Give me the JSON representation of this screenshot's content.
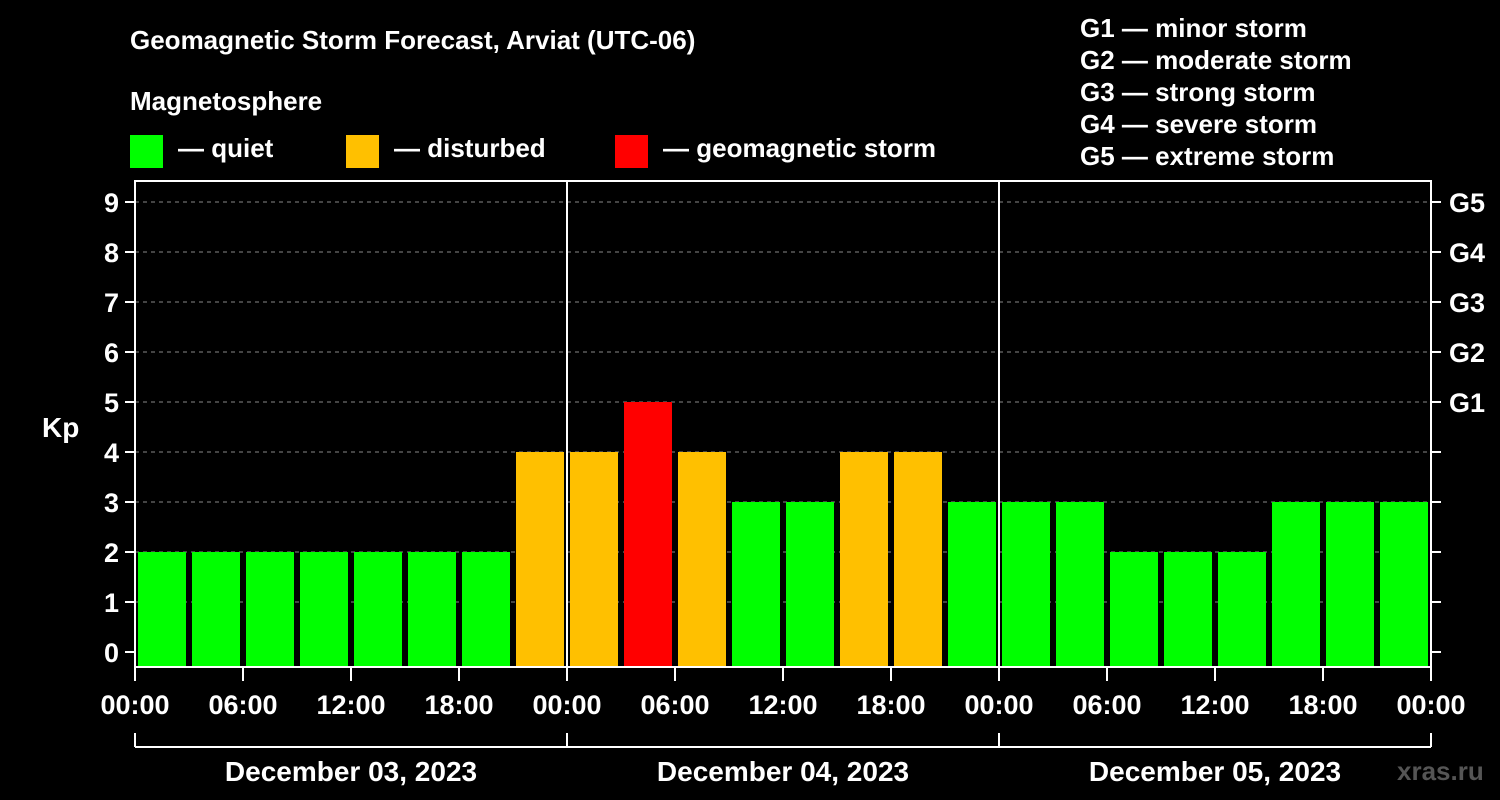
{
  "title": "Geomagnetic Storm Forecast, Arviat (UTC-06)",
  "magnetosphere_label": "Magnetosphere",
  "legend": [
    {
      "label": "— quiet",
      "color": "#00ff00"
    },
    {
      "label": "— disturbed",
      "color": "#ffc000"
    },
    {
      "label": "— geomagnetic storm",
      "color": "#ff0000"
    }
  ],
  "g_scale": [
    "G1 — minor storm",
    "G2 — moderate storm",
    "G3 — strong storm",
    "G4 — severe storm",
    "G5 — extreme storm"
  ],
  "watermark": "xras.ru",
  "chart_data": {
    "type": "bar",
    "title": "Geomagnetic Storm Forecast, Arviat (UTC-06)",
    "ylabel": "Kp",
    "ylim": [
      0,
      9
    ],
    "yticks": [
      "0",
      "1",
      "2",
      "3",
      "4",
      "5",
      "6",
      "7",
      "8",
      "9"
    ],
    "right_axis_labels": [
      {
        "kp": 5,
        "label": "G1"
      },
      {
        "kp": 6,
        "label": "G2"
      },
      {
        "kp": 7,
        "label": "G3"
      },
      {
        "kp": 8,
        "label": "G4"
      },
      {
        "kp": 9,
        "label": "G5"
      }
    ],
    "xtick_labels": [
      "00:00",
      "06:00",
      "12:00",
      "18:00",
      "00:00",
      "06:00",
      "12:00",
      "18:00",
      "00:00",
      "06:00",
      "12:00",
      "18:00",
      "00:00"
    ],
    "days": [
      "December 03, 2023",
      "December 04, 2023",
      "December 05, 2023"
    ],
    "interval_hours": 3,
    "values": [
      2,
      2,
      2,
      2,
      2,
      2,
      2,
      4,
      4,
      5,
      4,
      3,
      3,
      4,
      4,
      3,
      3,
      3,
      2,
      2,
      2,
      3,
      3,
      3
    ],
    "colors": {
      "quiet": "#00ff00",
      "disturbed": "#ffc000",
      "storm": "#ff0000"
    },
    "grid": true
  }
}
